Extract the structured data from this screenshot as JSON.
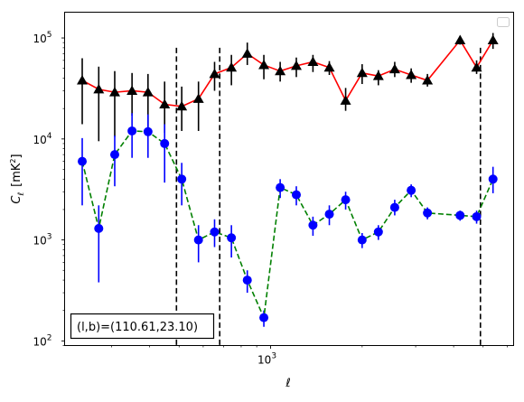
{
  "chart_data": {
    "type": "scatter",
    "title": "",
    "xlabel": "ℓ",
    "ylabel_main": "C",
    "ylabel_sub": "ℓ",
    "ylabel_unit": "[mK",
    "ylabel_unit_sup": "2",
    "ylabel_unit_close": "]",
    "xscale": "log",
    "yscale": "log",
    "xlim": [
      210,
      6300
    ],
    "ylim": [
      90,
      180000
    ],
    "x_ticks": [
      {
        "value": 1000,
        "base": "10",
        "exp": "3"
      }
    ],
    "y_ticks": [
      {
        "value": 100,
        "base": "10",
        "exp": "2"
      },
      {
        "value": 1000,
        "base": "10",
        "exp": "3"
      },
      {
        "value": 10000,
        "base": "10",
        "exp": "4"
      },
      {
        "value": 100000,
        "base": "10",
        "exp": "5"
      }
    ],
    "vlines": [
      490,
      680,
      4900
    ],
    "annotation": "(l,b)=(110.61,23.10)",
    "legend": "top-right (empty)",
    "grid": false,
    "series": [
      {
        "marker": "triangle",
        "line_color": "#ff0000",
        "line_style": "solid",
        "marker_color": "#000000",
        "points": [
          {
            "x": 240,
            "y": 38000,
            "lo": 14000,
            "hi": 63000
          },
          {
            "x": 272,
            "y": 31000,
            "lo": 9500,
            "hi": 52000
          },
          {
            "x": 307,
            "y": 29000,
            "lo": 10500,
            "hi": 47000
          },
          {
            "x": 350,
            "y": 30000,
            "lo": 17000,
            "hi": 45000
          },
          {
            "x": 395,
            "y": 29000,
            "lo": 13000,
            "hi": 44000
          },
          {
            "x": 448,
            "y": 22000,
            "lo": 11500,
            "hi": 37000
          },
          {
            "x": 510,
            "y": 21000,
            "lo": 12000,
            "hi": 33000
          },
          {
            "x": 579,
            "y": 25000,
            "lo": 12000,
            "hi": 37000
          },
          {
            "x": 654,
            "y": 44000,
            "lo": 30000,
            "hi": 58000
          },
          {
            "x": 743,
            "y": 51000,
            "lo": 34000,
            "hi": 68000
          },
          {
            "x": 838,
            "y": 70000,
            "lo": 54000,
            "hi": 90000
          },
          {
            "x": 950,
            "y": 54000,
            "lo": 39000,
            "hi": 68000
          },
          {
            "x": 1075,
            "y": 47000,
            "lo": 37000,
            "hi": 58000
          },
          {
            "x": 1215,
            "y": 53000,
            "lo": 41000,
            "hi": 64000
          },
          {
            "x": 1378,
            "y": 58000,
            "lo": 46000,
            "hi": 68000
          },
          {
            "x": 1560,
            "y": 51000,
            "lo": 43000,
            "hi": 59000
          },
          {
            "x": 1765,
            "y": 24000,
            "lo": 19000,
            "hi": 32000
          },
          {
            "x": 2000,
            "y": 45000,
            "lo": 35000,
            "hi": 55000
          },
          {
            "x": 2262,
            "y": 42000,
            "lo": 34000,
            "hi": 48000
          },
          {
            "x": 2560,
            "y": 49000,
            "lo": 41000,
            "hi": 58000
          },
          {
            "x": 2900,
            "y": 43000,
            "lo": 36000,
            "hi": 50000
          },
          {
            "x": 3280,
            "y": 38000,
            "lo": 33000,
            "hi": 44000
          },
          {
            "x": 4200,
            "y": 95000,
            "lo": 86000,
            "hi": 105000
          },
          {
            "x": 4760,
            "y": 51000,
            "lo": 44000,
            "hi": 60000
          },
          {
            "x": 5390,
            "y": 95000,
            "lo": 78000,
            "hi": 112000
          }
        ]
      },
      {
        "marker": "circle",
        "line_color": "#008000",
        "line_style": "dashed",
        "marker_color": "#0000ff",
        "points": [
          {
            "x": 240,
            "y": 6000,
            "lo": 2200,
            "hi": 10200
          },
          {
            "x": 272,
            "y": 1300,
            "lo": 380,
            "hi": 2200
          },
          {
            "x": 307,
            "y": 7000,
            "lo": 3400,
            "hi": 10800
          },
          {
            "x": 350,
            "y": 12000,
            "lo": 6500,
            "hi": 18000
          },
          {
            "x": 395,
            "y": 11800,
            "lo": 6500,
            "hi": 17500
          },
          {
            "x": 448,
            "y": 9000,
            "lo": 3700,
            "hi": 14000
          },
          {
            "x": 510,
            "y": 4000,
            "lo": 2200,
            "hi": 5800
          },
          {
            "x": 579,
            "y": 1000,
            "lo": 600,
            "hi": 1400
          },
          {
            "x": 654,
            "y": 1200,
            "lo": 850,
            "hi": 1600
          },
          {
            "x": 743,
            "y": 1050,
            "lo": 670,
            "hi": 1400
          },
          {
            "x": 838,
            "y": 400,
            "lo": 300,
            "hi": 500
          },
          {
            "x": 950,
            "y": 170,
            "lo": 138,
            "hi": 200
          },
          {
            "x": 1075,
            "y": 3300,
            "lo": 2600,
            "hi": 4000
          },
          {
            "x": 1215,
            "y": 2800,
            "lo": 2200,
            "hi": 3400
          },
          {
            "x": 1378,
            "y": 1400,
            "lo": 1100,
            "hi": 1700
          },
          {
            "x": 1560,
            "y": 1800,
            "lo": 1400,
            "hi": 2200
          },
          {
            "x": 1765,
            "y": 2500,
            "lo": 2000,
            "hi": 3000
          },
          {
            "x": 2000,
            "y": 1000,
            "lo": 830,
            "hi": 1170
          },
          {
            "x": 2262,
            "y": 1200,
            "lo": 1000,
            "hi": 1400
          },
          {
            "x": 2560,
            "y": 2100,
            "lo": 1750,
            "hi": 2500
          },
          {
            "x": 2900,
            "y": 3100,
            "lo": 2650,
            "hi": 3550
          },
          {
            "x": 3280,
            "y": 1850,
            "lo": 1600,
            "hi": 2100
          },
          {
            "x": 4200,
            "y": 1750,
            "lo": 1550,
            "hi": 1950
          },
          {
            "x": 4760,
            "y": 1700,
            "lo": 1450,
            "hi": 1950
          },
          {
            "x": 5390,
            "y": 4000,
            "lo": 2900,
            "hi": 5300
          }
        ]
      }
    ]
  }
}
